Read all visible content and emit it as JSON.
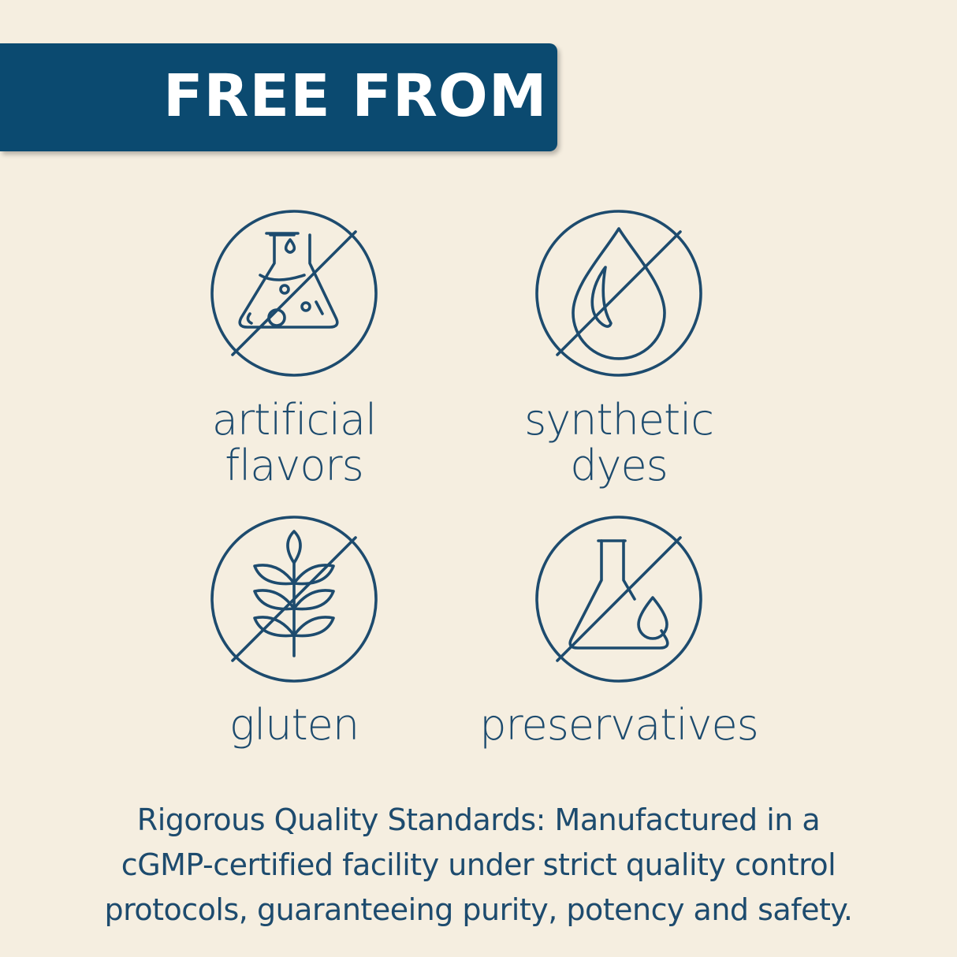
{
  "banner": {
    "title": "FREE FROM"
  },
  "items": [
    {
      "label_line1": "artificial",
      "label_line2": "flavors",
      "icon": "no-flask-bubbles-icon"
    },
    {
      "label_line1": "synthetic",
      "label_line2": "dyes",
      "icon": "no-drop-icon"
    },
    {
      "label_line1": "gluten",
      "icon": "no-wheat-icon"
    },
    {
      "label_line1": "preservatives",
      "icon": "no-flask-drop-icon"
    }
  ],
  "description": {
    "lines": [
      "Rigorous Quality Standards: Manufactured in a",
      "cGMP-certified facility under strict quality control",
      "protocols, guaranteeing purity, potency and safety."
    ]
  },
  "colors": {
    "background": "#f5eee0",
    "banner": "#0b4a70",
    "icon": "#1d4b6e",
    "text": "#1d4b6e"
  }
}
